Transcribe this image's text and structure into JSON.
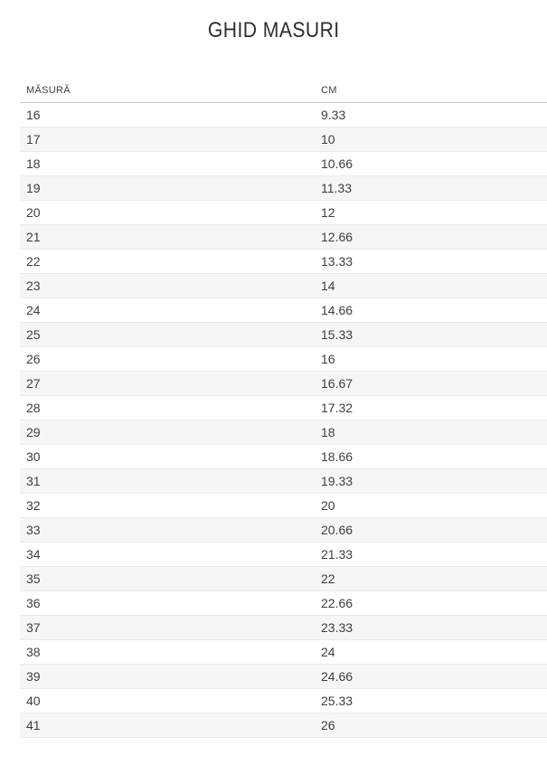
{
  "page": {
    "title": "GHID MASURI"
  },
  "size_table": {
    "columns": [
      "MĂSURĂ",
      "CM"
    ],
    "rows": [
      {
        "size": "16",
        "cm": "9.33"
      },
      {
        "size": "17",
        "cm": "10"
      },
      {
        "size": "18",
        "cm": "10.66"
      },
      {
        "size": "19",
        "cm": "11.33"
      },
      {
        "size": "20",
        "cm": "12"
      },
      {
        "size": "21",
        "cm": "12.66"
      },
      {
        "size": "22",
        "cm": "13.33"
      },
      {
        "size": "23",
        "cm": "14"
      },
      {
        "size": "24",
        "cm": "14.66"
      },
      {
        "size": "25",
        "cm": "15.33"
      },
      {
        "size": "26",
        "cm": "16"
      },
      {
        "size": "27",
        "cm": "16.67"
      },
      {
        "size": "28",
        "cm": "17.32"
      },
      {
        "size": "29",
        "cm": "18"
      },
      {
        "size": "30",
        "cm": "18.66"
      },
      {
        "size": "31",
        "cm": "19.33"
      },
      {
        "size": "32",
        "cm": "20"
      },
      {
        "size": "33",
        "cm": "20.66"
      },
      {
        "size": "34",
        "cm": "21.33"
      },
      {
        "size": "35",
        "cm": "22"
      },
      {
        "size": "36",
        "cm": "22.66"
      },
      {
        "size": "37",
        "cm": "23.33"
      },
      {
        "size": "38",
        "cm": "24"
      },
      {
        "size": "39",
        "cm": "24.66"
      },
      {
        "size": "40",
        "cm": "25.33"
      },
      {
        "size": "41",
        "cm": "26"
      }
    ]
  }
}
